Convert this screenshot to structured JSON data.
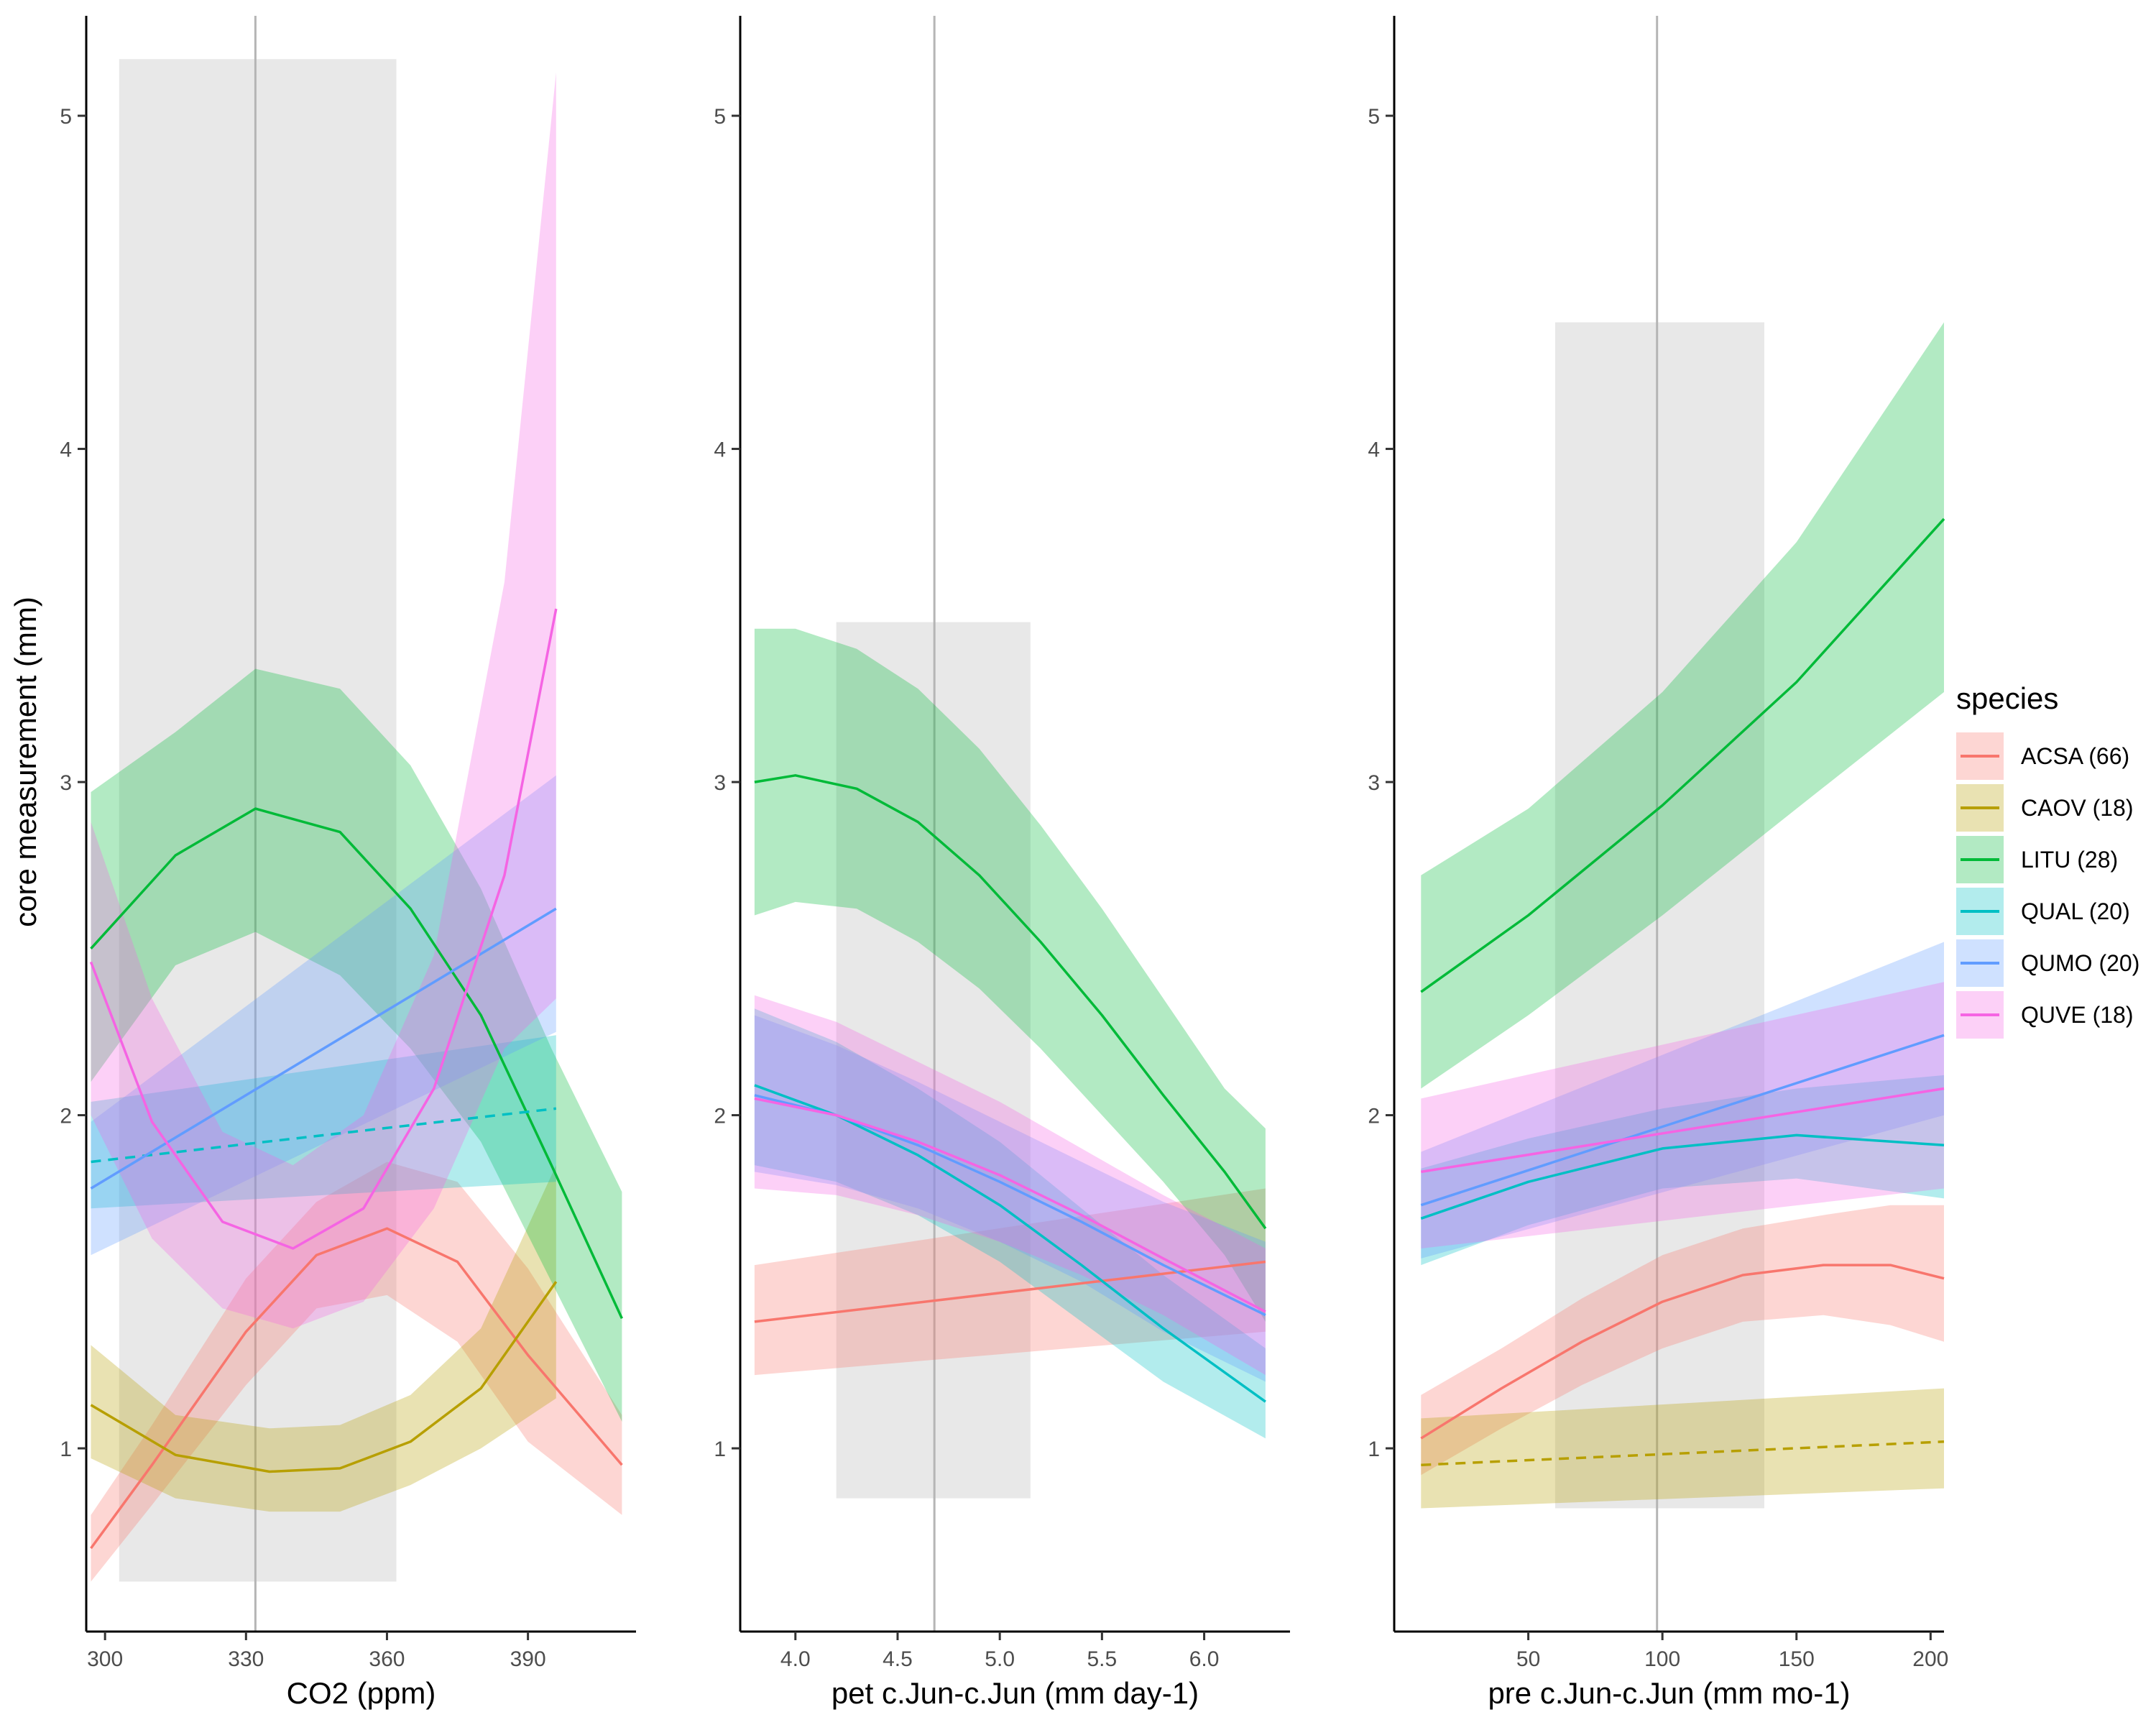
{
  "chart_data": {
    "type": "line",
    "ylabel": "core measurement (mm)",
    "legend": {
      "title": "species",
      "placement": "right",
      "entries": [
        {
          "label": "ACSA (66)",
          "color": "#F8766D"
        },
        {
          "label": "CAOV (18)",
          "color": "#B79F00"
        },
        {
          "label": "LITU (28)",
          "color": "#00BA38"
        },
        {
          "label": "QUAL (20)",
          "color": "#00BFC4"
        },
        {
          "label": "QUMO (20)",
          "color": "#619CFF"
        },
        {
          "label": "QUVE (18)",
          "color": "#F564E3"
        }
      ]
    },
    "ylim": [
      0.45,
      5.3
    ],
    "yticks": [
      1,
      2,
      3,
      4,
      5
    ],
    "panels": [
      {
        "xlabel": "CO2  (ppm)",
        "xlim": [
          296,
          413
        ],
        "xticks": [
          300,
          330,
          360,
          390
        ],
        "vline": 332,
        "shade": {
          "x": [
            303,
            362
          ],
          "y": [
            0.6,
            5.17
          ]
        },
        "series": [
          {
            "name": "ACSA (66)",
            "dashed": false,
            "x": [
              297,
              310,
              330,
              345,
              360,
              375,
              390,
              410
            ],
            "y": [
              0.7,
              0.95,
              1.35,
              1.58,
              1.66,
              1.56,
              1.28,
              0.95
            ],
            "lo": [
              0.6,
              0.83,
              1.19,
              1.42,
              1.46,
              1.32,
              1.02,
              0.8
            ],
            "hi": [
              0.8,
              1.07,
              1.51,
              1.74,
              1.86,
              1.8,
              1.54,
              1.1
            ]
          },
          {
            "name": "CAOV (18)",
            "dashed": false,
            "x": [
              297,
              315,
              335,
              350,
              365,
              380,
              396
            ],
            "y": [
              1.13,
              0.98,
              0.93,
              0.94,
              1.02,
              1.18,
              1.5
            ],
            "lo": [
              0.97,
              0.85,
              0.81,
              0.81,
              0.89,
              1.0,
              1.15
            ],
            "hi": [
              1.31,
              1.1,
              1.06,
              1.07,
              1.16,
              1.36,
              1.85
            ]
          },
          {
            "name": "LITU (28)",
            "dashed": false,
            "x": [
              297,
              315,
              332,
              350,
              365,
              380,
              395,
              410
            ],
            "y": [
              2.5,
              2.78,
              2.92,
              2.85,
              2.62,
              2.3,
              1.85,
              1.39
            ],
            "lo": [
              2.1,
              2.45,
              2.55,
              2.42,
              2.2,
              1.92,
              1.5,
              1.08
            ],
            "hi": [
              2.97,
              3.15,
              3.34,
              3.28,
              3.05,
              2.68,
              2.2,
              1.77
            ]
          },
          {
            "name": "QUAL (20)",
            "dashed": true,
            "x": [
              297,
              396
            ],
            "y": [
              1.86,
              2.02
            ],
            "lo": [
              1.72,
              1.8
            ],
            "hi": [
              2.04,
              2.24
            ]
          },
          {
            "name": "QUMO (20)",
            "dashed": false,
            "x": [
              297,
              396
            ],
            "y": [
              1.78,
              2.62
            ],
            "lo": [
              1.58,
              2.25
            ],
            "hi": [
              1.98,
              3.02
            ]
          },
          {
            "name": "QUVE (18)",
            "dashed": false,
            "x": [
              297,
              310,
              325,
              340,
              355,
              370,
              385,
              396
            ],
            "y": [
              2.46,
              1.98,
              1.68,
              1.6,
              1.72,
              2.08,
              2.72,
              3.52
            ],
            "lo": [
              2.0,
              1.63,
              1.42,
              1.36,
              1.44,
              1.72,
              2.2,
              2.35
            ],
            "hi": [
              2.88,
              2.35,
              1.95,
              1.85,
              2.0,
              2.48,
              3.6,
              5.13
            ]
          }
        ]
      },
      {
        "xlabel": "pet c.Jun-c.Jun (mm day-1)",
        "xlim": [
          3.73,
          6.42
        ],
        "xticks": [
          4.0,
          4.5,
          5.0,
          5.5,
          6.0
        ],
        "xtick_labels": [
          "4.0",
          "4.5",
          "5.0",
          "5.5",
          "6.0"
        ],
        "vline": 4.68,
        "shade": {
          "x": [
            4.2,
            5.15
          ],
          "y": [
            0.85,
            3.48
          ]
        },
        "series": [
          {
            "name": "ACSA (66)",
            "dashed": false,
            "x": [
              3.8,
              6.3
            ],
            "y": [
              1.38,
              1.56
            ],
            "lo": [
              1.22,
              1.35
            ],
            "hi": [
              1.55,
              1.78
            ]
          },
          {
            "name": "LITU (28)",
            "dashed": false,
            "x": [
              3.8,
              4.0,
              4.3,
              4.6,
              4.9,
              5.2,
              5.5,
              5.8,
              6.1,
              6.3
            ],
            "y": [
              3.0,
              3.02,
              2.98,
              2.88,
              2.72,
              2.52,
              2.3,
              2.06,
              1.83,
              1.66
            ],
            "lo": [
              2.6,
              2.64,
              2.62,
              2.52,
              2.38,
              2.2,
              2.0,
              1.8,
              1.58,
              1.38
            ],
            "hi": [
              3.46,
              3.46,
              3.4,
              3.28,
              3.1,
              2.87,
              2.62,
              2.35,
              2.08,
              1.96
            ]
          },
          {
            "name": "QUAL (20)",
            "dashed": false,
            "x": [
              3.8,
              4.2,
              4.6,
              5.0,
              5.4,
              5.8,
              6.3
            ],
            "y": [
              2.09,
              2.0,
              1.88,
              1.73,
              1.55,
              1.36,
              1.14
            ],
            "lo": [
              1.85,
              1.8,
              1.7,
              1.56,
              1.38,
              1.2,
              1.03
            ],
            "hi": [
              2.32,
              2.22,
              2.08,
              1.92,
              1.72,
              1.52,
              1.3
            ]
          },
          {
            "name": "QUMO (20)",
            "dashed": false,
            "x": [
              3.8,
              4.2,
              4.6,
              5.0,
              5.4,
              5.8,
              6.3
            ],
            "y": [
              2.06,
              2.0,
              1.91,
              1.8,
              1.68,
              1.55,
              1.4
            ],
            "lo": [
              1.83,
              1.79,
              1.72,
              1.62,
              1.5,
              1.35,
              1.2
            ],
            "hi": [
              2.3,
              2.21,
              2.1,
              1.98,
              1.86,
              1.74,
              1.62
            ]
          },
          {
            "name": "QUVE (18)",
            "dashed": false,
            "x": [
              3.8,
              4.2,
              4.6,
              5.0,
              5.4,
              5.8,
              6.3
            ],
            "y": [
              2.05,
              2.0,
              1.92,
              1.82,
              1.7,
              1.57,
              1.41
            ],
            "lo": [
              1.78,
              1.76,
              1.7,
              1.62,
              1.52,
              1.4,
              1.22
            ],
            "hi": [
              2.36,
              2.28,
              2.16,
              2.04,
              1.9,
              1.76,
              1.6
            ]
          }
        ]
      },
      {
        "xlabel": "pre c.Jun-c.Jun (mm mo-1)",
        "xlim": [
          0,
          205
        ],
        "xticks": [
          50,
          100,
          150,
          200
        ],
        "vline": 98,
        "shade": {
          "x": [
            60,
            138
          ],
          "y": [
            0.82,
            4.38
          ]
        },
        "series": [
          {
            "name": "ACSA (66)",
            "dashed": false,
            "x": [
              10,
              40,
              70,
              100,
              130,
              160,
              185,
              205
            ],
            "y": [
              1.03,
              1.18,
              1.32,
              1.44,
              1.52,
              1.55,
              1.55,
              1.51
            ],
            "lo": [
              0.92,
              1.06,
              1.19,
              1.3,
              1.38,
              1.4,
              1.37,
              1.32
            ],
            "hi": [
              1.16,
              1.3,
              1.45,
              1.58,
              1.66,
              1.7,
              1.73,
              1.73
            ]
          },
          {
            "name": "CAOV (18)",
            "dashed": true,
            "x": [
              10,
              205
            ],
            "y": [
              0.95,
              1.02
            ],
            "lo": [
              0.82,
              0.88
            ],
            "hi": [
              1.09,
              1.18
            ]
          },
          {
            "name": "LITU (28)",
            "dashed": false,
            "x": [
              10,
              50,
              100,
              150,
              205
            ],
            "y": [
              2.37,
              2.6,
              2.93,
              3.3,
              3.79
            ],
            "lo": [
              2.08,
              2.3,
              2.6,
              2.92,
              3.27
            ],
            "hi": [
              2.72,
              2.92,
              3.27,
              3.72,
              4.38
            ]
          },
          {
            "name": "QUAL (20)",
            "dashed": false,
            "x": [
              10,
              50,
              100,
              150,
              205
            ],
            "y": [
              1.69,
              1.8,
              1.9,
              1.94,
              1.91
            ],
            "lo": [
              1.55,
              1.67,
              1.78,
              1.81,
              1.75
            ],
            "hi": [
              1.84,
              1.93,
              2.02,
              2.08,
              2.12
            ]
          },
          {
            "name": "QUMO (20)",
            "dashed": false,
            "x": [
              10,
              205
            ],
            "y": [
              1.73,
              2.24
            ],
            "lo": [
              1.57,
              2.0
            ],
            "hi": [
              1.89,
              2.52
            ]
          },
          {
            "name": "QUVE (18)",
            "dashed": false,
            "x": [
              10,
              205
            ],
            "y": [
              1.83,
              2.08
            ],
            "lo": [
              1.6,
              1.78
            ],
            "hi": [
              2.05,
              2.4
            ]
          }
        ]
      }
    ]
  }
}
